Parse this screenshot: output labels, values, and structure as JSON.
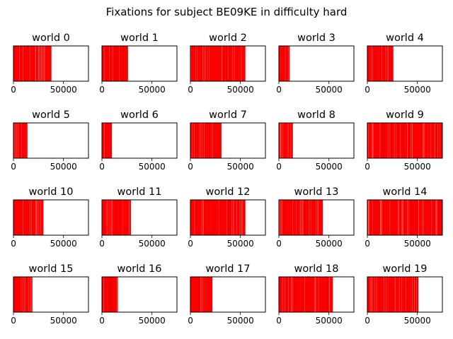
{
  "figure": {
    "title": "Fixations for subject BE09KE in difficulty hard"
  },
  "chart_data": {
    "type": "event-raster",
    "title": "Fixations for subject BE09KE in difficulty hard",
    "xlim": [
      0,
      75000
    ],
    "xticks": [
      0,
      50000
    ],
    "xtick_labels": [
      "0",
      "50000"
    ],
    "ytick_labels": [],
    "grid": false,
    "event_color": "#ff0000",
    "panels": [
      {
        "title": "world 0",
        "extent": [
          0,
          38000
        ]
      },
      {
        "title": "world 1",
        "extent": [
          0,
          26000
        ]
      },
      {
        "title": "world 2",
        "extent": [
          0,
          55000
        ]
      },
      {
        "title": "world 3",
        "extent": [
          0,
          11000
        ]
      },
      {
        "title": "world 4",
        "extent": [
          0,
          26000
        ]
      },
      {
        "title": "world 5",
        "extent": [
          0,
          14000
        ]
      },
      {
        "title": "world 6",
        "extent": [
          0,
          10000
        ]
      },
      {
        "title": "world 7",
        "extent": [
          0,
          31000
        ]
      },
      {
        "title": "world 8",
        "extent": [
          0,
          14000
        ]
      },
      {
        "title": "world 9",
        "extent": [
          0,
          75000
        ]
      },
      {
        "title": "world 10",
        "extent": [
          0,
          30000
        ]
      },
      {
        "title": "world 11",
        "extent": [
          0,
          29000
        ]
      },
      {
        "title": "world 12",
        "extent": [
          0,
          55000
        ]
      },
      {
        "title": "world 13",
        "extent": [
          0,
          44000
        ]
      },
      {
        "title": "world 14",
        "extent": [
          0,
          75000
        ]
      },
      {
        "title": "world 15",
        "extent": [
          0,
          19000
        ]
      },
      {
        "title": "world 16",
        "extent": [
          0,
          16000
        ]
      },
      {
        "title": "world 17",
        "extent": [
          0,
          22000
        ]
      },
      {
        "title": "world 18",
        "extent": [
          0,
          54000
        ]
      },
      {
        "title": "world 19",
        "extent": [
          0,
          51000
        ]
      }
    ]
  }
}
